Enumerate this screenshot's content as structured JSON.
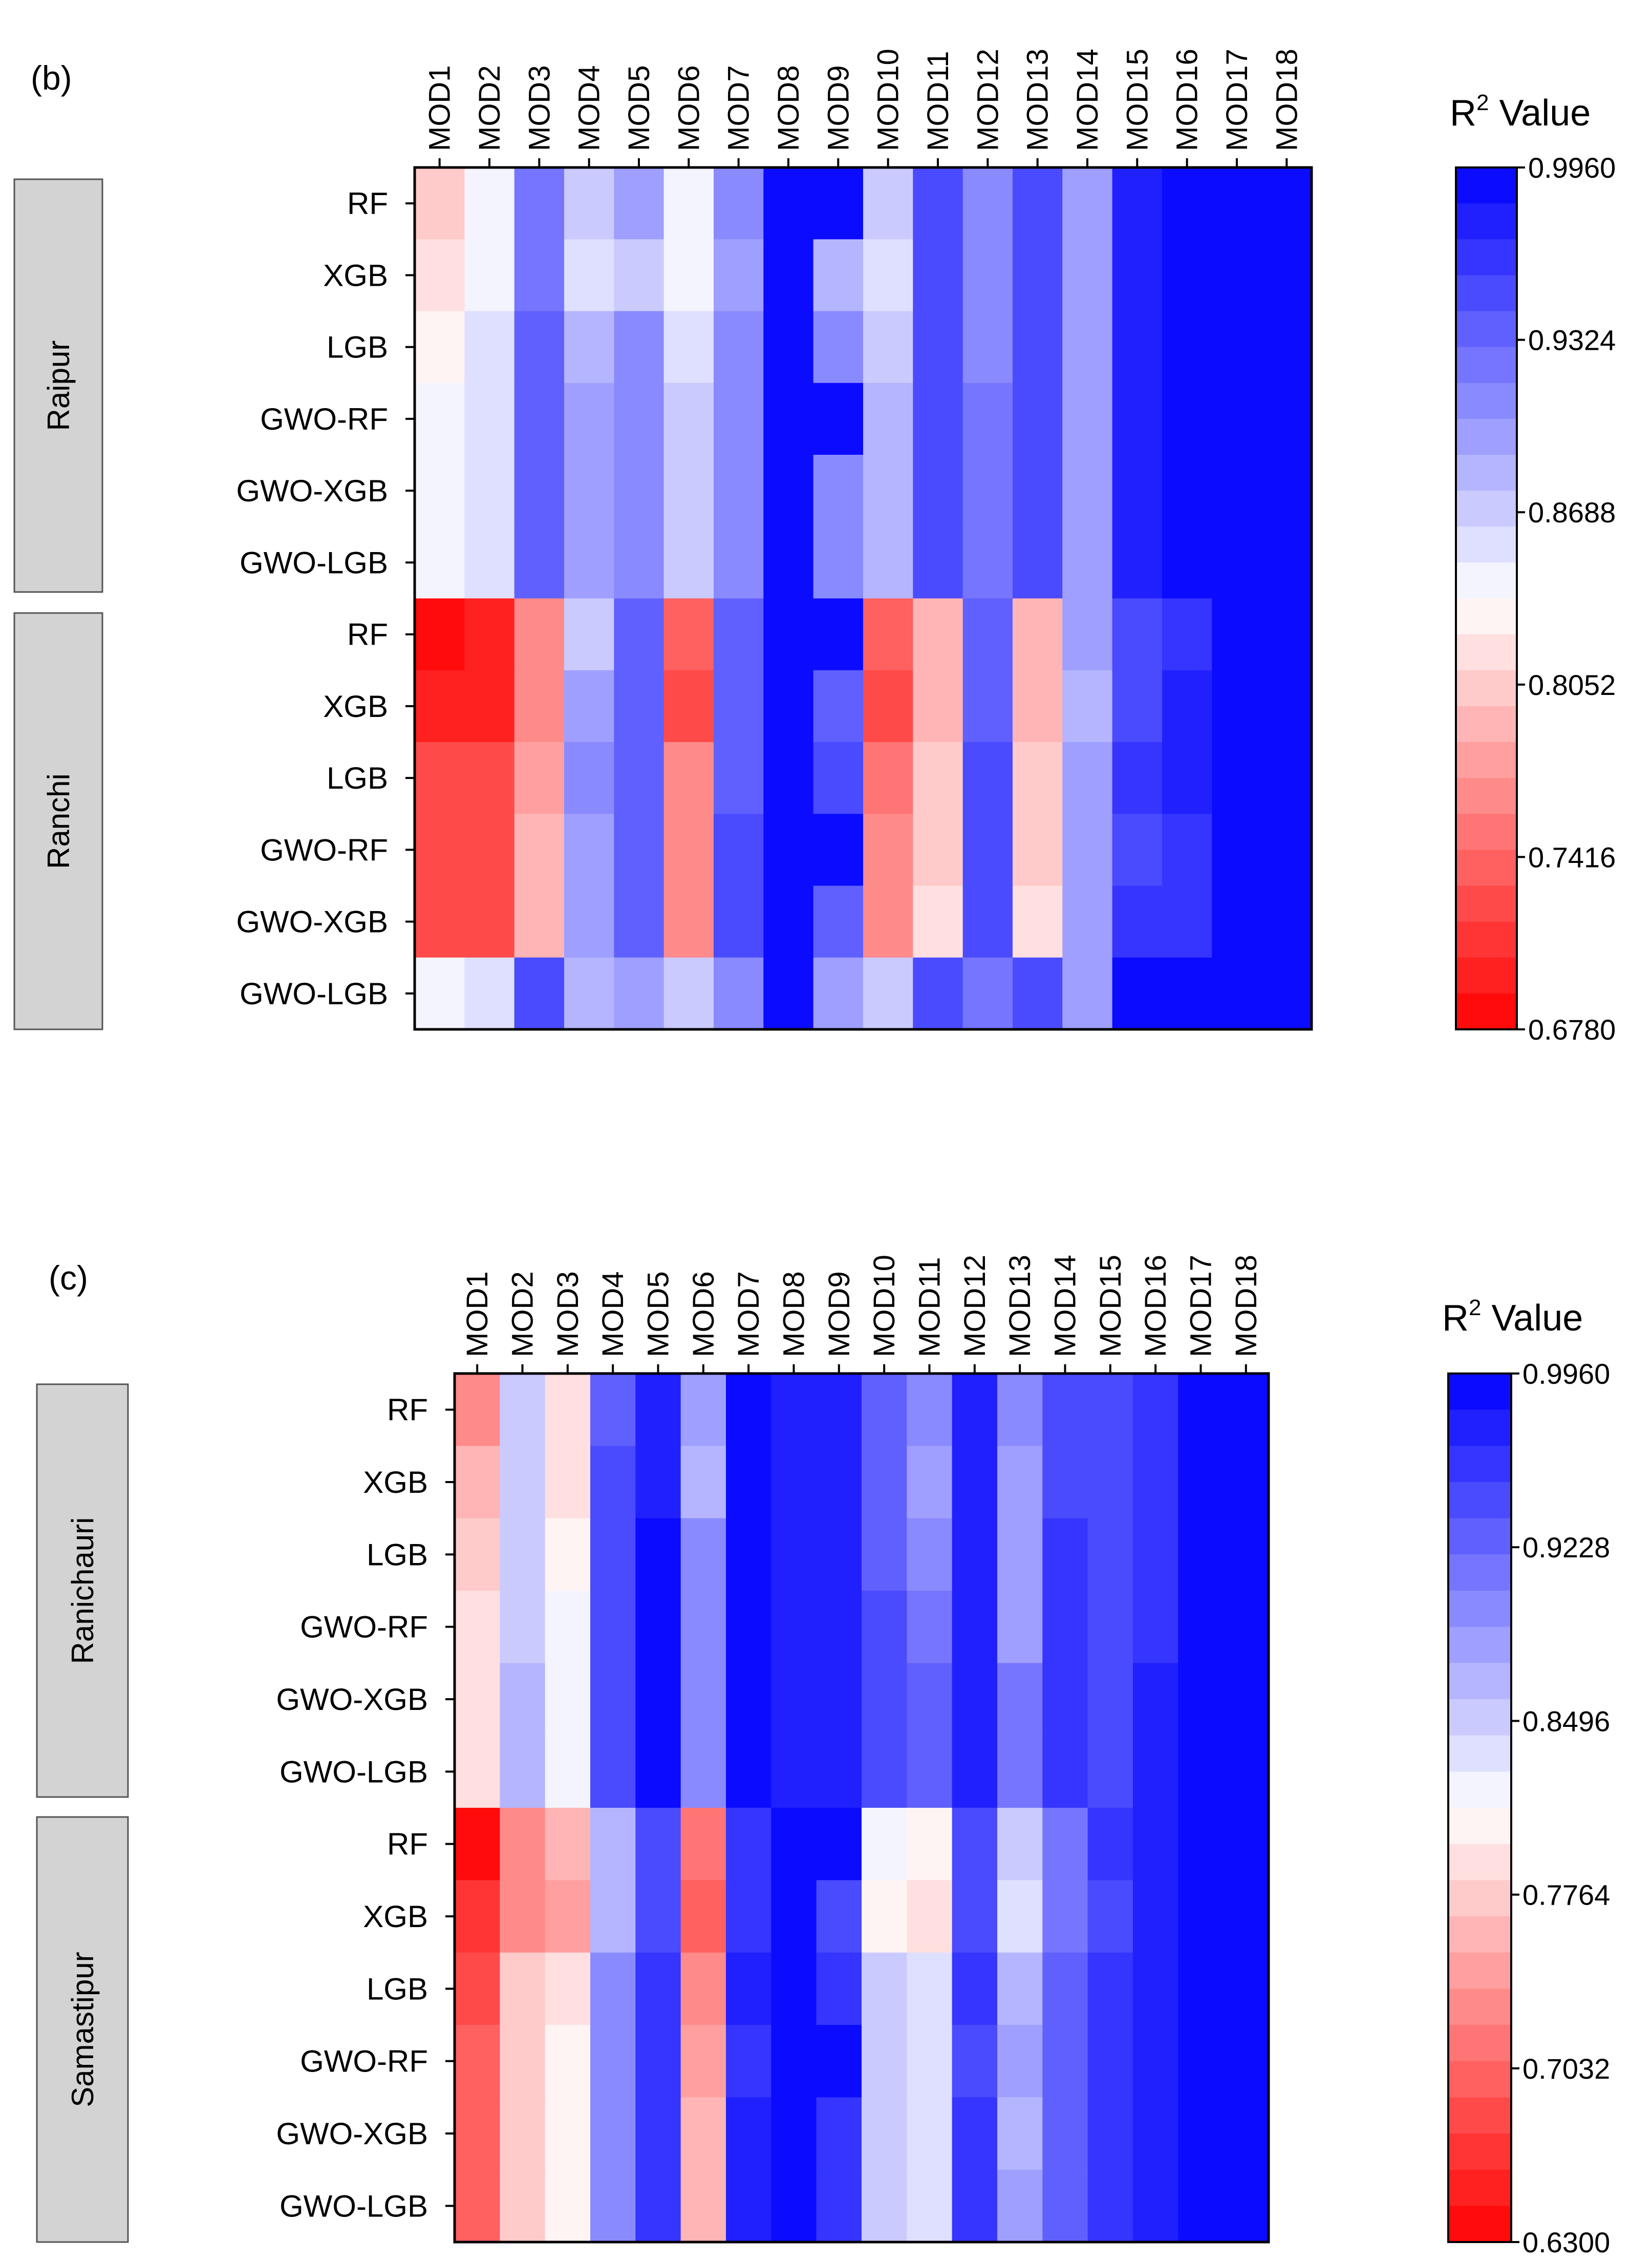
{
  "chart_data": [
    {
      "panel_label": "(b)",
      "type": "heatmap",
      "columns": [
        "MOD1",
        "MOD2",
        "MOD3",
        "MOD4",
        "MOD5",
        "MOD6",
        "MOD7",
        "MOD8",
        "MOD9",
        "MOD10",
        "MOD11",
        "MOD12",
        "MOD13",
        "MOD14",
        "MOD15",
        "MOD16",
        "MOD17",
        "MOD18"
      ],
      "groups": [
        {
          "name": "Raipur",
          "rows": [
            "RF",
            "XGB",
            "LGB",
            "GWO-RF",
            "GWO-XGB",
            "GWO-LGB"
          ]
        },
        {
          "name": "Ranchi",
          "rows": [
            "RF",
            "XGB",
            "LGB",
            "GWO-RF",
            "GWO-XGB",
            "GWO-LGB"
          ]
        }
      ],
      "colorbar": {
        "title_main": "R",
        "title_sup": "2",
        "title_rest": " Value",
        "min": 0.678,
        "max": 0.996,
        "low_color": "#ff0000",
        "mid_color": "#ffffff",
        "high_color": "#0000ff",
        "ticks": [
          "0.9960",
          "0.9324",
          "0.8688",
          "0.8052",
          "0.7416",
          "0.6780"
        ]
      },
      "values": [
        [
          0.81,
          0.847,
          0.92,
          0.875,
          0.89,
          0.85,
          0.905,
          0.99,
          0.99,
          0.868,
          0.95,
          0.91,
          0.955,
          0.89,
          0.975,
          0.985,
          0.995,
          0.995
        ],
        [
          0.82,
          0.845,
          0.92,
          0.86,
          0.868,
          0.85,
          0.89,
          0.99,
          0.885,
          0.855,
          0.95,
          0.91,
          0.945,
          0.895,
          0.97,
          0.985,
          0.995,
          0.995
        ],
        [
          0.83,
          0.855,
          0.94,
          0.88,
          0.905,
          0.856,
          0.91,
          0.99,
          0.905,
          0.866,
          0.95,
          0.91,
          0.95,
          0.89,
          0.975,
          0.985,
          0.995,
          0.995
        ],
        [
          0.84,
          0.855,
          0.94,
          0.89,
          0.905,
          0.87,
          0.915,
          0.99,
          0.99,
          0.878,
          0.95,
          0.92,
          0.95,
          0.9,
          0.975,
          0.985,
          0.995,
          0.995
        ],
        [
          0.84,
          0.855,
          0.94,
          0.89,
          0.905,
          0.87,
          0.915,
          0.995,
          0.905,
          0.878,
          0.95,
          0.92,
          0.95,
          0.9,
          0.975,
          0.995,
          0.995,
          0.995
        ],
        [
          0.84,
          0.855,
          0.94,
          0.89,
          0.905,
          0.87,
          0.915,
          0.995,
          0.905,
          0.878,
          0.95,
          0.92,
          0.95,
          0.9,
          0.975,
          0.995,
          0.995,
          0.995
        ],
        [
          0.68,
          0.7,
          0.76,
          0.875,
          0.93,
          0.735,
          0.935,
          0.985,
          0.985,
          0.735,
          0.79,
          0.935,
          0.795,
          0.89,
          0.95,
          0.96,
          0.985,
          0.985
        ],
        [
          0.7,
          0.7,
          0.765,
          0.89,
          0.93,
          0.72,
          0.93,
          0.985,
          0.935,
          0.72,
          0.785,
          0.94,
          0.785,
          0.88,
          0.95,
          0.975,
          0.995,
          0.995
        ],
        [
          0.72,
          0.72,
          0.78,
          0.905,
          0.94,
          0.76,
          0.94,
          0.985,
          0.945,
          0.75,
          0.8,
          0.945,
          0.8,
          0.895,
          0.96,
          0.975,
          0.995,
          0.995
        ],
        [
          0.73,
          0.73,
          0.79,
          0.9,
          0.94,
          0.77,
          0.945,
          0.985,
          0.985,
          0.76,
          0.805,
          0.945,
          0.805,
          0.895,
          0.955,
          0.96,
          0.985,
          0.985
        ],
        [
          0.73,
          0.73,
          0.79,
          0.9,
          0.94,
          0.77,
          0.945,
          0.985,
          0.94,
          0.76,
          0.82,
          0.945,
          0.82,
          0.895,
          0.96,
          0.965,
          0.995,
          0.995
        ],
        [
          0.84,
          0.86,
          0.945,
          0.885,
          0.9,
          0.865,
          0.91,
          0.996,
          0.9,
          0.875,
          0.945,
          0.92,
          0.955,
          0.895,
          0.985,
          0.995,
          0.995,
          0.995
        ]
      ]
    },
    {
      "panel_label": "(c)",
      "type": "heatmap",
      "columns": [
        "MOD1",
        "MOD2",
        "MOD3",
        "MOD4",
        "MOD5",
        "MOD6",
        "MOD7",
        "MOD8",
        "MOD9",
        "MOD10",
        "MOD11",
        "MOD12",
        "MOD13",
        "MOD14",
        "MOD15",
        "MOD16",
        "MOD17",
        "MOD18"
      ],
      "groups": [
        {
          "name": "Ranichauri",
          "rows": [
            "RF",
            "XGB",
            "LGB",
            "GWO-RF",
            "GWO-XGB",
            "GWO-LGB"
          ]
        },
        {
          "name": "Samastipur",
          "rows": [
            "RF",
            "XGB",
            "LGB",
            "GWO-RF",
            "GWO-XGB",
            "GWO-LGB"
          ]
        }
      ],
      "colorbar": {
        "title_main": "R",
        "title_sup": "2",
        "title_rest": " Value",
        "min": 0.63,
        "max": 0.996,
        "low_color": "#ff0000",
        "mid_color": "#ffffff",
        "high_color": "#0000ff",
        "ticks": [
          "0.9960",
          "0.9228",
          "0.8496",
          "0.7764",
          "0.7032",
          "0.6300"
        ]
      },
      "values": [
        [
          0.73,
          0.845,
          0.795,
          0.93,
          0.975,
          0.875,
          0.99,
          0.98,
          0.98,
          0.925,
          0.9,
          0.98,
          0.89,
          0.95,
          0.94,
          0.96,
          0.995,
          0.995
        ],
        [
          0.765,
          0.845,
          0.795,
          0.935,
          0.975,
          0.87,
          0.99,
          0.98,
          0.98,
          0.925,
          0.88,
          0.98,
          0.875,
          0.95,
          0.935,
          0.96,
          0.995,
          0.995
        ],
        [
          0.775,
          0.855,
          0.805,
          0.95,
          0.985,
          0.89,
          0.99,
          0.98,
          0.98,
          0.93,
          0.9,
          0.98,
          0.88,
          0.955,
          0.945,
          0.96,
          0.995,
          0.995
        ],
        [
          0.79,
          0.855,
          0.825,
          0.95,
          0.985,
          0.89,
          0.99,
          0.98,
          0.98,
          0.94,
          0.905,
          0.98,
          0.885,
          0.955,
          0.95,
          0.96,
          0.995,
          0.995
        ],
        [
          0.79,
          0.87,
          0.825,
          0.95,
          0.985,
          0.89,
          0.99,
          0.98,
          0.98,
          0.94,
          0.92,
          0.98,
          0.91,
          0.955,
          0.95,
          0.975,
          0.995,
          0.995
        ],
        [
          0.79,
          0.87,
          0.825,
          0.95,
          0.985,
          0.89,
          0.99,
          0.98,
          0.98,
          0.94,
          0.92,
          0.98,
          0.91,
          0.955,
          0.95,
          0.975,
          0.995,
          0.995
        ],
        [
          0.64,
          0.73,
          0.76,
          0.87,
          0.94,
          0.71,
          0.96,
          0.985,
          0.985,
          0.825,
          0.805,
          0.95,
          0.855,
          0.91,
          0.965,
          0.97,
          0.995,
          0.985
        ],
        [
          0.665,
          0.73,
          0.75,
          0.87,
          0.94,
          0.7,
          0.96,
          0.985,
          0.95,
          0.805,
          0.79,
          0.95,
          0.84,
          0.91,
          0.945,
          0.97,
          0.995,
          0.995
        ],
        [
          0.69,
          0.775,
          0.785,
          0.895,
          0.955,
          0.735,
          0.97,
          0.996,
          0.96,
          0.845,
          0.83,
          0.96,
          0.865,
          0.92,
          0.96,
          0.97,
          0.995,
          0.995
        ],
        [
          0.7,
          0.775,
          0.8,
          0.895,
          0.955,
          0.745,
          0.96,
          0.985,
          0.985,
          0.845,
          0.83,
          0.95,
          0.88,
          0.92,
          0.96,
          0.97,
          0.995,
          0.985
        ],
        [
          0.7,
          0.775,
          0.8,
          0.895,
          0.955,
          0.755,
          0.97,
          0.996,
          0.96,
          0.845,
          0.83,
          0.96,
          0.865,
          0.92,
          0.96,
          0.97,
          0.995,
          0.995
        ],
        [
          0.7,
          0.775,
          0.8,
          0.895,
          0.955,
          0.755,
          0.97,
          0.996,
          0.96,
          0.845,
          0.83,
          0.96,
          0.88,
          0.92,
          0.96,
          0.97,
          0.995,
          0.995
        ]
      ]
    }
  ]
}
